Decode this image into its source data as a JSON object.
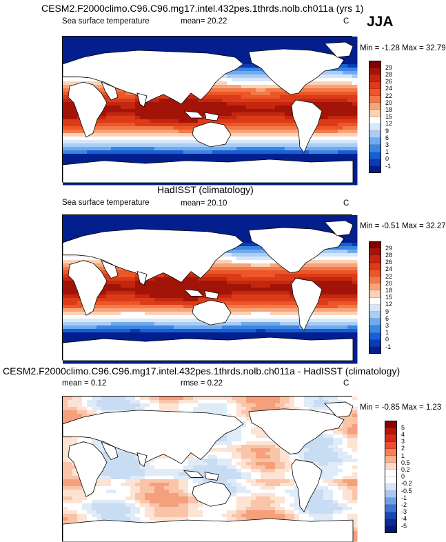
{
  "season": "JJA",
  "panels": [
    {
      "title": "CESM2.F2000climo.C96.C96.mg17.intel.432pes.1thrds.nolb.ch011a (yrs 1)",
      "left_label": "Sea surface temperature",
      "stat1": "mean=  20.22",
      "stat2": "",
      "units": "C",
      "minmax": "Min =  -1.28 Max =  32.79",
      "kind": "sst",
      "colorbar": {
        "ticks": [
          "29",
          "28",
          "26",
          "24",
          "22",
          "20",
          "18",
          "15",
          "12",
          "9",
          "6",
          "3",
          "1",
          "0",
          "-1"
        ],
        "colors": [
          "#7f0000",
          "#a31408",
          "#c4260f",
          "#dc3b18",
          "#ec5628",
          "#f37a48",
          "#f8a47a",
          "#fcd2b6",
          "#ffffff",
          "#d6e6fb",
          "#a9cdf5",
          "#72aaee",
          "#3c86e3",
          "#175fd4",
          "#0a3cb4",
          "#031f8e"
        ]
      }
    },
    {
      "title": "HadISST (climatology)",
      "left_label": "Sea surface temperature",
      "stat1": "mean=  20.10",
      "stat2": "",
      "units": "C",
      "minmax": "Min =  -0.51 Max =  32.27",
      "kind": "sst",
      "colorbar": {
        "ticks": [
          "29",
          "28",
          "26",
          "24",
          "22",
          "20",
          "18",
          "15",
          "12",
          "9",
          "6",
          "3",
          "1",
          "0",
          "-1"
        ],
        "colors": [
          "#7f0000",
          "#a31408",
          "#c4260f",
          "#dc3b18",
          "#ec5628",
          "#f37a48",
          "#f8a47a",
          "#fcd2b6",
          "#ffffff",
          "#d6e6fb",
          "#a9cdf5",
          "#72aaee",
          "#3c86e3",
          "#175fd4",
          "#0a3cb4",
          "#031f8e"
        ]
      }
    },
    {
      "title": "CESM2.F2000climo.C96.C96.mg17.intel.432pes.1thrds.nolb.ch011a - HadISST (climatology)",
      "left_label": "mean =   0.12",
      "stat1": "rmse =   0.22",
      "stat2": "",
      "units": "C",
      "minmax": "Min =  -0.85 Max =   1.23",
      "kind": "diff",
      "colorbar": {
        "ticks": [
          "5",
          "4",
          "3",
          "2",
          "1",
          "0.5",
          "0.2",
          "0",
          "-0.2",
          "-0.5",
          "-1",
          "-2",
          "-3",
          "-4",
          "-5"
        ],
        "colors": [
          "#8b0000",
          "#b5150b",
          "#d42a16",
          "#ea4f2e",
          "#f5814f",
          "#f9b08e",
          "#fcd9c4",
          "#ffffff",
          "#ffffff",
          "#d5e4f7",
          "#a9c8f0",
          "#6f9fe6",
          "#3f74d6",
          "#1848b8",
          "#0a2a95",
          "#031878"
        ]
      }
    }
  ]
}
